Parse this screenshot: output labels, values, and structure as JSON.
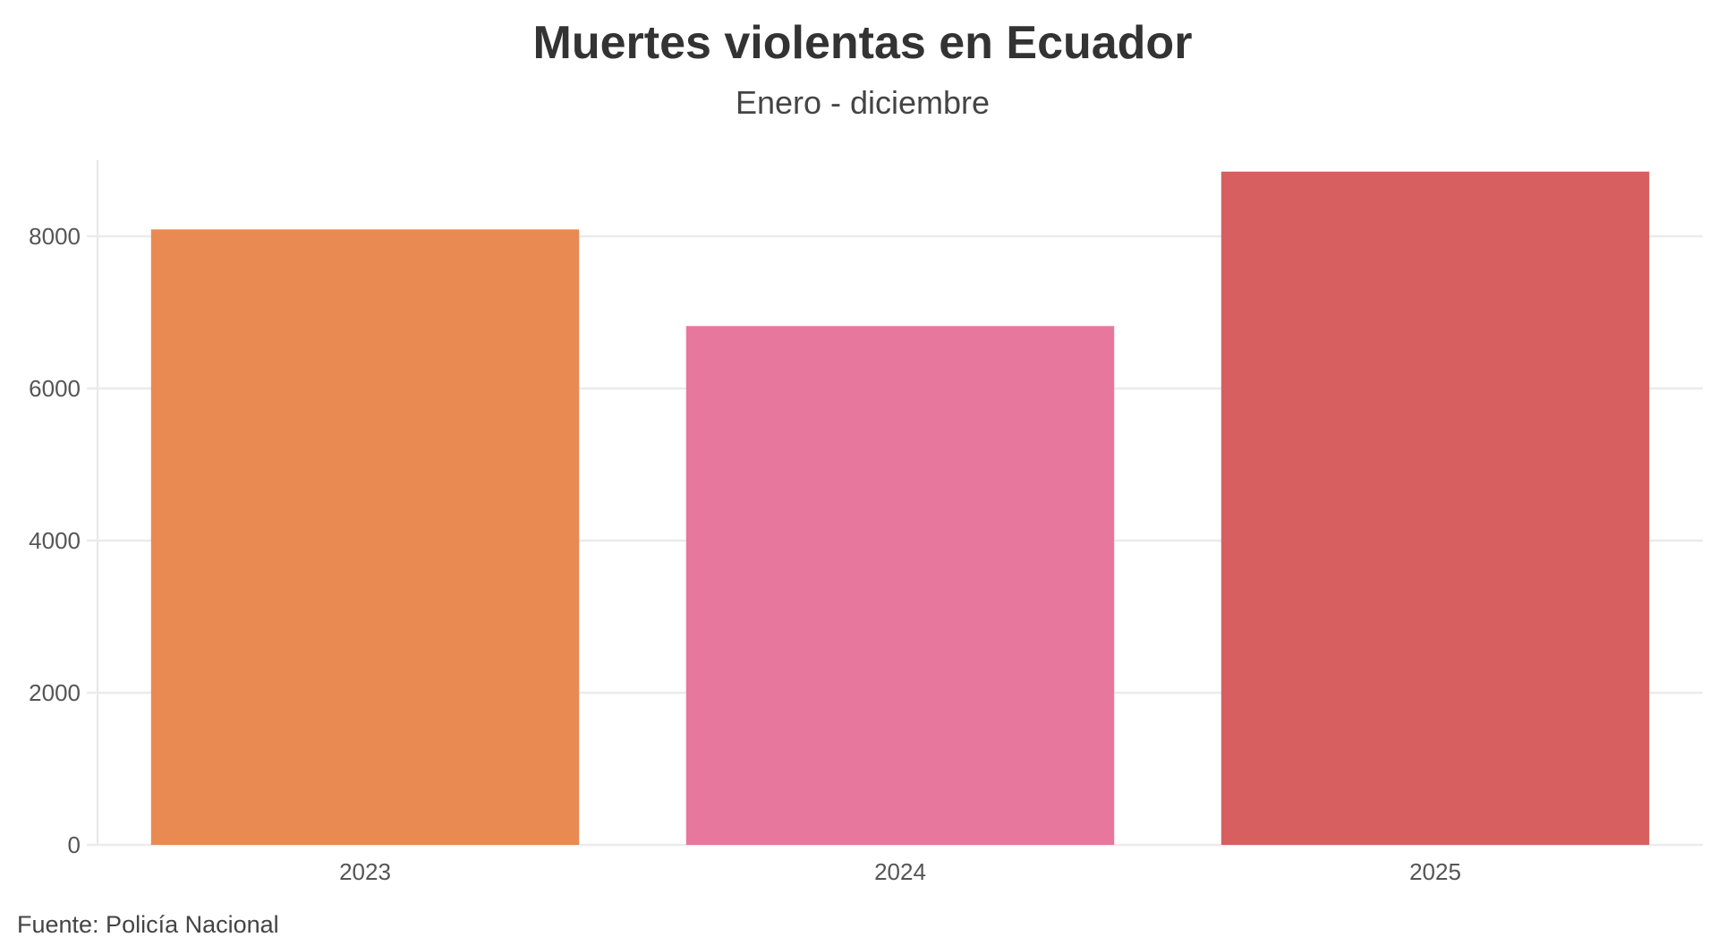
{
  "chart_data": {
    "type": "bar",
    "title": "Muertes violentas en Ecuador",
    "subtitle": "Enero - diciembre",
    "source": "Fuente: Policía Nacional",
    "categories": [
      "2023",
      "2024",
      "2025"
    ],
    "values": [
      8090,
      6820,
      8850
    ],
    "colors": [
      "#e98a52",
      "#e7779c",
      "#d85f5f"
    ],
    "xlabel": "",
    "ylabel": "",
    "ylim": [
      0,
      9000
    ],
    "yticks": [
      0,
      2000,
      4000,
      6000,
      8000
    ],
    "grid": true,
    "legend": "none"
  }
}
